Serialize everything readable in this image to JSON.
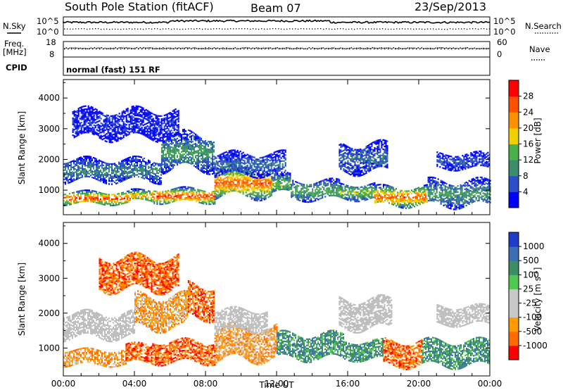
{
  "header": {
    "station": "South Pole Station (fitACF)",
    "beam": "Beam 07",
    "date": "23/Sep/2013"
  },
  "top_panels": {
    "nsky_label": "N.Sky",
    "nsearch_label": "N.Search",
    "freq_label": "Freq.",
    "freq_unit": "[MHz]",
    "nave_label": "Nave",
    "cpid_label": "CPID",
    "cpid_value": "normal (fast) 151 RF",
    "noise_ticks": [
      "10^5",
      "10^0"
    ],
    "noise_right_ticks": [
      "10^5",
      "10^0"
    ],
    "freq_ticks": [
      "18",
      "8"
    ],
    "nave_ticks": [
      "60",
      "0"
    ]
  },
  "colors": {
    "power": [
      "#0000ff",
      "#2950c8",
      "#3c8c6e",
      "#4ab04a",
      "#f0d000",
      "#ff9000",
      "#ff5000",
      "#ff0000"
    ],
    "velocity": [
      "#ff0000",
      "#ff6a00",
      "#ff9a00",
      "#c8c8c8",
      "#c8c8c8",
      "#50c850",
      "#3c8c64",
      "#3c6eb4",
      "#1e3cc8"
    ],
    "ground_scatter": "#bdbdbd"
  },
  "chart_data": [
    {
      "type": "heatmap",
      "name": "power",
      "ylabel": "Slant Range [km]",
      "colorbar_label": "Power [dB]",
      "colorbar_ticks": [
        "28",
        "24",
        "20",
        "16",
        "12",
        "8",
        "4"
      ],
      "colorbar_range": [
        0,
        32
      ],
      "x_ticks": [
        "00:00",
        "04:00",
        "08:00",
        "12:00",
        "16:00",
        "20:00",
        "00:00"
      ],
      "x_range_hours": [
        0,
        24
      ],
      "y_ticks": [
        1000,
        2000,
        3000,
        4000
      ],
      "y_range_km": [
        200,
        4600
      ],
      "bands": [
        {
          "h0": 0.0,
          "h1": 3.8,
          "r0": 550,
          "r1": 950,
          "p": 28
        },
        {
          "h0": 3.8,
          "h1": 5.0,
          "r0": 650,
          "r1": 1000,
          "p": 22
        },
        {
          "h0": 5.0,
          "h1": 8.5,
          "r0": 600,
          "r1": 1050,
          "p": 28
        },
        {
          "h0": 8.5,
          "h1": 11.7,
          "r0": 800,
          "r1": 1700,
          "p": 26
        },
        {
          "h0": 11.7,
          "h1": 12.8,
          "r0": 900,
          "r1": 1500,
          "p": 16
        },
        {
          "h0": 12.8,
          "h1": 15.5,
          "r0": 700,
          "r1": 1300,
          "p": 14
        },
        {
          "h0": 15.5,
          "h1": 17.5,
          "r0": 700,
          "r1": 1200,
          "p": 16
        },
        {
          "h0": 17.5,
          "h1": 20.5,
          "r0": 500,
          "r1": 1100,
          "p": 26
        },
        {
          "h0": 20.5,
          "h1": 24.0,
          "r0": 500,
          "r1": 1300,
          "p": 12
        },
        {
          "h0": 0.0,
          "h1": 5.5,
          "r0": 1300,
          "r1": 2000,
          "p": 10
        },
        {
          "h0": 5.5,
          "h1": 8.5,
          "r0": 1700,
          "r1": 2800,
          "p": 12
        },
        {
          "h0": 8.5,
          "h1": 12.5,
          "r0": 1500,
          "r1": 2200,
          "p": 8
        },
        {
          "h0": 15.5,
          "h1": 18.2,
          "r0": 1600,
          "r1": 2500,
          "p": 8
        },
        {
          "h0": 21.0,
          "h1": 24.0,
          "r0": 1700,
          "r1": 2200,
          "p": 6
        },
        {
          "h0": 0.5,
          "h1": 6.5,
          "r0": 2700,
          "r1": 3600,
          "p": 4
        }
      ]
    },
    {
      "type": "heatmap",
      "name": "velocity",
      "ylabel": "Slant Range [km]",
      "xlabel": "Time UT",
      "colorbar_label": "Velocity [m s^-1]",
      "colorbar_ticks": [
        "1000",
        "500",
        "100",
        "25",
        "-25",
        "-100",
        "-500",
        "-1000"
      ],
      "x_ticks": [
        "00:00",
        "04:00",
        "08:00",
        "12:00",
        "16:00",
        "20:00",
        "00:00"
      ],
      "x_range_hours": [
        0,
        24
      ],
      "y_ticks": [
        1000,
        2000,
        3000,
        4000
      ],
      "y_range_km": [
        200,
        4600
      ],
      "bands": [
        {
          "h0": 0.0,
          "h1": 3.5,
          "r0": 550,
          "r1": 950,
          "v": 2
        },
        {
          "h0": 3.5,
          "h1": 5.0,
          "r0": 600,
          "r1": 1100,
          "v": 1
        },
        {
          "h0": 5.0,
          "h1": 8.5,
          "r0": 600,
          "r1": 1200,
          "v": 1
        },
        {
          "h0": 8.5,
          "h1": 12.0,
          "r0": 700,
          "r1": 1600,
          "v": 2
        },
        {
          "h0": 12.0,
          "h1": 15.8,
          "r0": 700,
          "r1": 1400,
          "v": 6
        },
        {
          "h0": 15.8,
          "h1": 18.0,
          "r0": 700,
          "r1": 1200,
          "v": 6
        },
        {
          "h0": 18.0,
          "h1": 20.2,
          "r0": 500,
          "r1": 1200,
          "v": 1
        },
        {
          "h0": 20.2,
          "h1": 24.0,
          "r0": 500,
          "r1": 1200,
          "v": 6
        },
        {
          "h0": 0.0,
          "h1": 4.0,
          "r0": 1300,
          "r1": 2000,
          "v": 4
        },
        {
          "h0": 4.0,
          "h1": 7.0,
          "r0": 1600,
          "r1": 2500,
          "v": 2
        },
        {
          "h0": 7.0,
          "h1": 8.5,
          "r0": 1900,
          "r1": 2800,
          "v": 1
        },
        {
          "h0": 8.5,
          "h1": 11.5,
          "r0": 1500,
          "r1": 2100,
          "v": 3
        },
        {
          "h0": 15.5,
          "h1": 18.5,
          "r0": 1600,
          "r1": 2400,
          "v": 4
        },
        {
          "h0": 21.0,
          "h1": 24.0,
          "r0": 1700,
          "r1": 2200,
          "v": 4
        },
        {
          "h0": 2.0,
          "h1": 6.5,
          "r0": 2700,
          "r1": 3600,
          "v": 1
        }
      ]
    }
  ]
}
